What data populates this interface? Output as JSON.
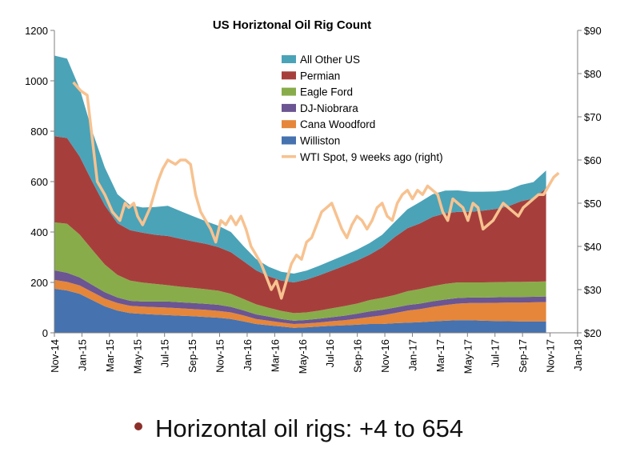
{
  "chart_data": {
    "type": "area",
    "title": "US Horiztonal Oil Rig Count",
    "x_ticks": [
      "Nov-14",
      "Jan-15",
      "Mar-15",
      "May-15",
      "Jul-15",
      "Sep-15",
      "Nov-15",
      "Jan-16",
      "Mar-16",
      "May-16",
      "Jul-16",
      "Sep-16",
      "Nov-16",
      "Jan-17",
      "Mar-17",
      "May-17",
      "Jul-17",
      "Sep-17",
      "Nov-17",
      "Jan-18"
    ],
    "ylim_left": [
      0,
      1200
    ],
    "y_ticks_left": [
      "0",
      "200",
      "400",
      "600",
      "800",
      "1000",
      "1200"
    ],
    "ylim_right": [
      20,
      90
    ],
    "y_ticks_right": [
      "$20",
      "$30",
      "$40",
      "$50",
      "$60",
      "$70",
      "$80",
      "$90"
    ],
    "legend": {
      "placement": "top-center"
    },
    "colors": {
      "All Other US": "#4ba3b8",
      "Permian": "#a63f3c",
      "Eagle Ford": "#88ac4a",
      "DJ-Niobrara": "#6b5592",
      "Cana Woodford": "#e5863a",
      "Williston": "#4672b0",
      "WTI Spot, 9 weeks ago (right)": "#f7c290"
    },
    "x_index": [
      0,
      1,
      2,
      3,
      4,
      5,
      6,
      7,
      8,
      9,
      10,
      11,
      12,
      13,
      14,
      15,
      16,
      17,
      18,
      19,
      20,
      21,
      22,
      23,
      24,
      25,
      26,
      27,
      28,
      29,
      30,
      31,
      32,
      33,
      34,
      35,
      36,
      37,
      38,
      39
    ],
    "stack_order": [
      "Williston",
      "Cana Woodford",
      "DJ-Niobrara",
      "Eagle Ford",
      "Permian",
      "All Other US"
    ],
    "series": [
      {
        "name": "Williston",
        "values": [
          175,
          168,
          155,
          130,
          105,
          88,
          78,
          75,
          72,
          70,
          68,
          66,
          63,
          60,
          55,
          45,
          35,
          30,
          25,
          20,
          22,
          25,
          28,
          30,
          32,
          35,
          35,
          38,
          40,
          42,
          45,
          48,
          50,
          50,
          48,
          47,
          46,
          45,
          45,
          45
        ]
      },
      {
        "name": "Cana Woodford",
        "values": [
          35,
          34,
          33,
          32,
          31,
          30,
          29,
          29,
          30,
          30,
          29,
          28,
          28,
          27,
          26,
          24,
          20,
          18,
          16,
          15,
          15,
          16,
          18,
          20,
          24,
          28,
          34,
          40,
          48,
          52,
          58,
          62,
          66,
          68,
          70,
          72,
          74,
          75,
          76,
          77
        ]
      },
      {
        "name": "DJ-Niobrara",
        "values": [
          38,
          36,
          32,
          28,
          25,
          22,
          20,
          20,
          22,
          24,
          24,
          24,
          24,
          24,
          22,
          20,
          18,
          16,
          14,
          13,
          14,
          15,
          16,
          18,
          20,
          22,
          22,
          22,
          22,
          22,
          22,
          22,
          22,
          22,
          22,
          22,
          22,
          22,
          22,
          22
        ]
      },
      {
        "name": "Eagle Ford",
        "values": [
          190,
          195,
          170,
          140,
          110,
          90,
          80,
          75,
          70,
          65,
          62,
          60,
          58,
          56,
          52,
          45,
          40,
          35,
          32,
          30,
          30,
          32,
          35,
          38,
          40,
          45,
          48,
          50,
          55,
          58,
          60,
          62,
          62,
          60,
          60,
          60,
          60,
          60,
          60,
          60
        ]
      },
      {
        "name": "Permian",
        "values": [
          342,
          340,
          310,
          270,
          235,
          205,
          200,
          198,
          195,
          195,
          190,
          185,
          180,
          173,
          165,
          150,
          135,
          125,
          120,
          122,
          130,
          140,
          150,
          160,
          170,
          180,
          200,
          230,
          250,
          260,
          275,
          280,
          280,
          280,
          285,
          290,
          300,
          320,
          330,
          370
        ]
      },
      {
        "name": "All Other US",
        "values": [
          320,
          315,
          270,
          200,
          150,
          115,
          100,
          100,
          110,
          120,
          110,
          100,
          90,
          85,
          80,
          60,
          45,
          38,
          35,
          35,
          36,
          38,
          40,
          42,
          44,
          46,
          50,
          60,
          75,
          85,
          90,
          90,
          85,
          80,
          75,
          70,
          65,
          65,
          65,
          70
        ]
      },
      {
        "name": "WTI Spot, 9 weeks ago (right)",
        "x": [
          1.5,
          2.1,
          2.6,
          3.0,
          3.4,
          4.0,
          4.6,
          5.2,
          5.6,
          5.9,
          6.3,
          6.6,
          7.0,
          7.6,
          8.2,
          8.6,
          9.0,
          9.6,
          10.0,
          10.4,
          10.8,
          11.2,
          11.6,
          12.0,
          12.4,
          12.8,
          13.2,
          13.6,
          14.0,
          14.4,
          14.8,
          15.2,
          15.6,
          16.0,
          16.4,
          16.8,
          17.2,
          17.6,
          18.0,
          18.4,
          18.8,
          19.2,
          19.6,
          20.0,
          20.4,
          20.8,
          21.2,
          21.6,
          22.0,
          22.4,
          22.8,
          23.2,
          23.6,
          24.0,
          24.4,
          24.8,
          25.2,
          25.6,
          26.0,
          26.4,
          26.8,
          27.2,
          27.6,
          28.0,
          28.4,
          28.8,
          29.2,
          29.6,
          30.0,
          30.4,
          30.8,
          31.2,
          31.6,
          32.0,
          32.4,
          32.8,
          33.2,
          33.6,
          34.0,
          34.4,
          34.8,
          35.2,
          35.6,
          36.0,
          36.4,
          36.8,
          37.2,
          37.6,
          38.0,
          38.4,
          38.8,
          39.2,
          39.6,
          40.0
        ],
        "values": [
          78,
          76,
          75,
          65,
          55,
          52,
          48,
          46,
          50,
          49,
          50,
          47,
          45,
          49,
          55,
          58,
          60,
          59,
          60,
          60,
          59,
          52,
          48,
          46,
          44,
          41,
          46,
          45,
          47,
          45,
          47,
          44,
          40,
          38,
          36,
          33,
          30,
          32,
          28,
          32,
          36,
          38,
          37,
          41,
          42,
          45,
          48,
          49,
          50,
          47,
          44,
          42,
          45,
          47,
          46,
          44,
          46,
          49,
          50,
          47,
          46,
          50,
          52,
          53,
          51,
          53,
          52,
          54,
          53,
          52,
          48,
          46,
          51,
          50,
          49,
          46,
          50,
          49,
          44,
          45,
          46,
          48,
          50,
          49,
          48,
          47,
          49,
          50,
          51,
          52,
          52,
          54,
          56,
          57
        ]
      }
    ]
  }
}
